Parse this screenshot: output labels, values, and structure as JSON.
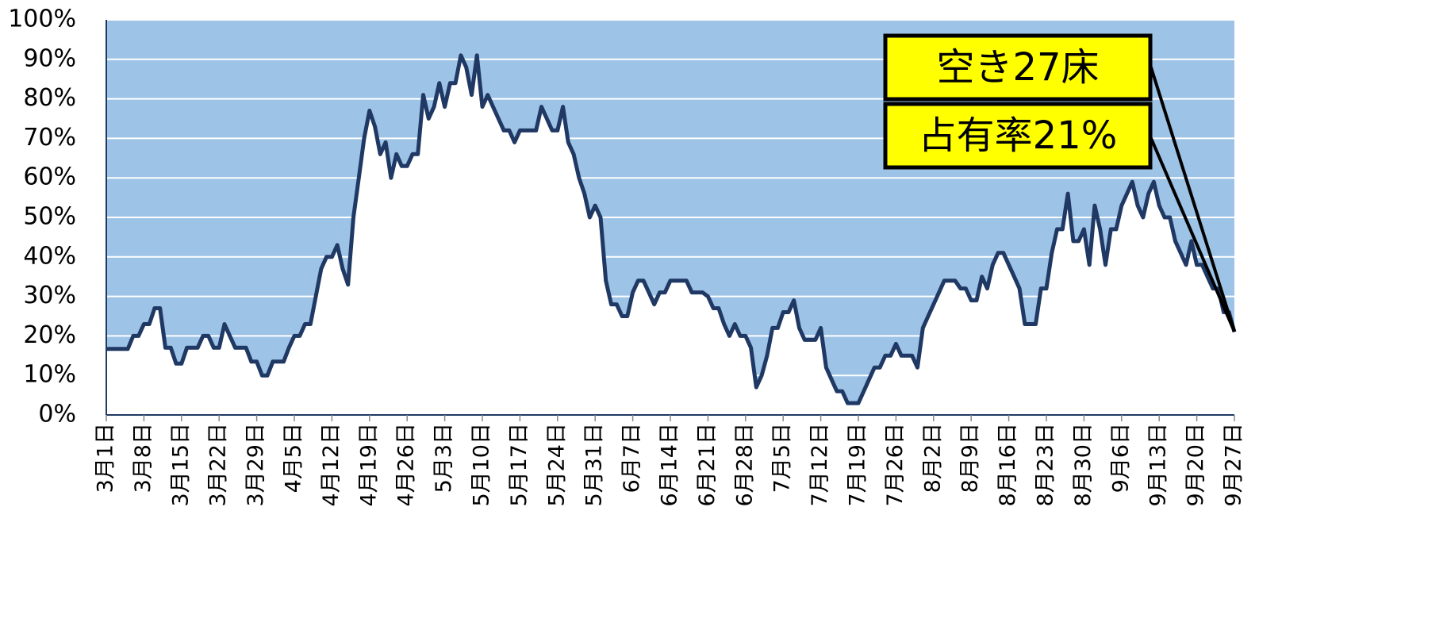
{
  "chart_data": {
    "type": "area",
    "categories": [
      "3月1日",
      null,
      null,
      null,
      null,
      null,
      null,
      "3月8日",
      null,
      null,
      null,
      null,
      null,
      null,
      "3月15日",
      null,
      null,
      null,
      null,
      null,
      null,
      "3月22日",
      null,
      null,
      null,
      null,
      null,
      null,
      "3月29日",
      null,
      null,
      null,
      null,
      null,
      null,
      "4月5日",
      null,
      null,
      null,
      null,
      null,
      null,
      "4月12日",
      null,
      null,
      null,
      null,
      null,
      null,
      "4月19日",
      null,
      null,
      null,
      null,
      null,
      null,
      "4月26日",
      null,
      null,
      null,
      null,
      null,
      null,
      "5月3日",
      null,
      null,
      null,
      null,
      null,
      null,
      "5月10日",
      null,
      null,
      null,
      null,
      null,
      null,
      "5月17日",
      null,
      null,
      null,
      null,
      null,
      null,
      "5月24日",
      null,
      null,
      null,
      null,
      null,
      null,
      "5月31日",
      null,
      null,
      null,
      null,
      null,
      null,
      "6月7日",
      null,
      null,
      null,
      null,
      null,
      null,
      "6月14日",
      null,
      null,
      null,
      null,
      null,
      null,
      "6月21日",
      null,
      null,
      null,
      null,
      null,
      null,
      "6月28日",
      null,
      null,
      null,
      null,
      null,
      null,
      "7月5日",
      null,
      null,
      null,
      null,
      null,
      null,
      "7月12日",
      null,
      null,
      null,
      null,
      null,
      null,
      "7月19日",
      null,
      null,
      null,
      null,
      null,
      null,
      "7月26日",
      null,
      null,
      null,
      null,
      null,
      null,
      "8月2日",
      null,
      null,
      null,
      null,
      null,
      null,
      "8月9日",
      null,
      null,
      null,
      null,
      null,
      null,
      "8月16日",
      null,
      null,
      null,
      null,
      null,
      null,
      "8月23日",
      null,
      null,
      null,
      null,
      null,
      null,
      "8月30日",
      null,
      null,
      null,
      null,
      null,
      null,
      "9月6日",
      null,
      null,
      null,
      null,
      null,
      null,
      "9月13日",
      null,
      null,
      null,
      null,
      null,
      null,
      "9月20日",
      null,
      null,
      null,
      null,
      null,
      null,
      "9月27日"
    ],
    "values": [
      16.7,
      16.7,
      16.7,
      16.7,
      16.7,
      20,
      20,
      23,
      23,
      27,
      27,
      17,
      17,
      13,
      13,
      17,
      17,
      17,
      20,
      20,
      17,
      17,
      23,
      20,
      17,
      17,
      17,
      13.5,
      13.5,
      10,
      10,
      13.5,
      13.5,
      13.5,
      17,
      20,
      20,
      23,
      23,
      30,
      37,
      40,
      40,
      43,
      37,
      33,
      50,
      60,
      70,
      77,
      73,
      66,
      69,
      60,
      66,
      63,
      63,
      66,
      66,
      81,
      75,
      78,
      84,
      78,
      84,
      84,
      91,
      88,
      81,
      91,
      78,
      81,
      78,
      75,
      72,
      72,
      69,
      72,
      72,
      72,
      72,
      78,
      75,
      72,
      72,
      78,
      69,
      66,
      60,
      56,
      50,
      53,
      50,
      34,
      28,
      28,
      25,
      25,
      31,
      34,
      34,
      31,
      28,
      31,
      31,
      34,
      34,
      34,
      34,
      31,
      31,
      31,
      30,
      27,
      27,
      23,
      20,
      23,
      20,
      20,
      17,
      7,
      10,
      15,
      22,
      22,
      26,
      26,
      29,
      22,
      19,
      19,
      19,
      22,
      12,
      9,
      6,
      6,
      3,
      3,
      3,
      6,
      9,
      12,
      12,
      15,
      15,
      18,
      15,
      15,
      15,
      12,
      22,
      25,
      28,
      31,
      34,
      34,
      34,
      32,
      32,
      29,
      29,
      35,
      32,
      38,
      41,
      41,
      38,
      35,
      32,
      23,
      23,
      23,
      32,
      32,
      41,
      47,
      47,
      56,
      44,
      44,
      47,
      38,
      53,
      47,
      38,
      47,
      47,
      53,
      56,
      59,
      53,
      50,
      56,
      59,
      53,
      50,
      50,
      44,
      41,
      38,
      44,
      38,
      38,
      35,
      32,
      32,
      26,
      26,
      21
    ],
    "color": "#1f3864",
    "fill": "#ffffff",
    "background": "#9dc3e6",
    "ylim": [
      0,
      100
    ],
    "yticks": [
      {
        "value": 0,
        "label": "0%"
      },
      {
        "value": 10,
        "label": "10%"
      },
      {
        "value": 20,
        "label": "20%"
      },
      {
        "value": 30,
        "label": "30%"
      },
      {
        "value": 40,
        "label": "40%"
      },
      {
        "value": 50,
        "label": "50%"
      },
      {
        "value": 60,
        "label": "60%"
      },
      {
        "value": 70,
        "label": "70%"
      },
      {
        "value": 80,
        "label": "80%"
      },
      {
        "value": 90,
        "label": "90%"
      },
      {
        "value": 100,
        "label": "100%"
      }
    ],
    "grid": true,
    "annotations": [
      {
        "text": "空き27床"
      },
      {
        "text": "占有率21%"
      }
    ]
  }
}
